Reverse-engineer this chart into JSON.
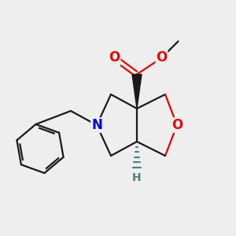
{
  "bg_color": "#eeeeee",
  "atom_colors": {
    "N": "#0000ee",
    "O": "#ee0000",
    "C": "#1a1a1a",
    "H": "#4a8080"
  },
  "line_width": 1.6,
  "font_size_atom": 12,
  "font_size_H": 10,
  "xlim": [
    0,
    10
  ],
  "ylim": [
    0.5,
    10.5
  ]
}
